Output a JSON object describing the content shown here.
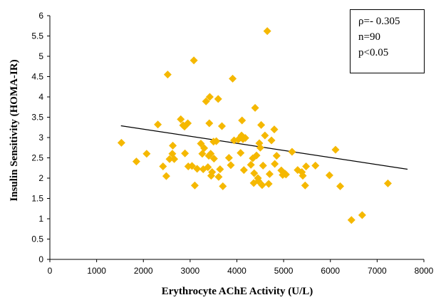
{
  "chart_data": {
    "type": "scatter",
    "title": "",
    "xlabel": "Erythrocyte AChE Activity (U/L)",
    "ylabel": "Insulin Sensitivity (HOMA-IR)",
    "xlim": [
      0,
      8000
    ],
    "ylim": [
      0,
      6
    ],
    "xticks": [
      "0",
      "1000",
      "2000",
      "3000",
      "4000",
      "5000",
      "6000",
      "7000",
      "8000"
    ],
    "yticks": [
      "0",
      "0.5",
      "1",
      "1.5",
      "2",
      "2.5",
      "3",
      "3.5",
      "4",
      "4.5",
      "5",
      "5.5",
      "6"
    ],
    "grid": false,
    "marker_color": "#F5B800",
    "trendline": {
      "x": [
        1520,
        7650
      ],
      "y": [
        3.29,
        2.22
      ],
      "color": "#000000"
    },
    "annotation": [
      "ρ=- 0.305",
      "n=90",
      "p<0.05"
    ],
    "annotation_position": "top-right",
    "points": [
      [
        1530,
        2.87
      ],
      [
        1850,
        2.41
      ],
      [
        2070,
        2.6
      ],
      [
        2310,
        3.32
      ],
      [
        2420,
        2.29
      ],
      [
        2490,
        2.05
      ],
      [
        2520,
        4.55
      ],
      [
        2560,
        2.47
      ],
      [
        2620,
        2.6
      ],
      [
        2630,
        2.8
      ],
      [
        2660,
        2.47
      ],
      [
        2800,
        3.45
      ],
      [
        2850,
        3.3
      ],
      [
        2880,
        3.27
      ],
      [
        2890,
        2.61
      ],
      [
        2950,
        3.35
      ],
      [
        2960,
        2.29
      ],
      [
        3040,
        2.3
      ],
      [
        3080,
        4.9
      ],
      [
        3100,
        1.82
      ],
      [
        3150,
        2.23
      ],
      [
        3230,
        2.85
      ],
      [
        3260,
        2.6
      ],
      [
        3280,
        2.22
      ],
      [
        3300,
        2.74
      ],
      [
        3340,
        3.89
      ],
      [
        3380,
        2.27
      ],
      [
        3400,
        2.55
      ],
      [
        3410,
        3.35
      ],
      [
        3420,
        4.0
      ],
      [
        3440,
        2.6
      ],
      [
        3450,
        2.06
      ],
      [
        3470,
        2.15
      ],
      [
        3500,
        2.9
      ],
      [
        3510,
        2.48
      ],
      [
        3560,
        2.91
      ],
      [
        3600,
        3.95
      ],
      [
        3610,
        2.03
      ],
      [
        3640,
        2.22
      ],
      [
        3680,
        3.28
      ],
      [
        3700,
        1.8
      ],
      [
        3830,
        2.5
      ],
      [
        3870,
        2.32
      ],
      [
        3910,
        4.45
      ],
      [
        3940,
        2.93
      ],
      [
        4030,
        2.95
      ],
      [
        4080,
        2.62
      ],
      [
        4100,
        3.05
      ],
      [
        4110,
        3.42
      ],
      [
        4130,
        2.96
      ],
      [
        4150,
        2.2
      ],
      [
        4180,
        2.99
      ],
      [
        4300,
        2.33
      ],
      [
        4340,
        2.49
      ],
      [
        4360,
        1.88
      ],
      [
        4370,
        2.12
      ],
      [
        4390,
        3.73
      ],
      [
        4420,
        2.56
      ],
      [
        4450,
        2.0
      ],
      [
        4460,
        1.93
      ],
      [
        4480,
        2.86
      ],
      [
        4500,
        2.75
      ],
      [
        4520,
        3.31
      ],
      [
        4540,
        1.83
      ],
      [
        4560,
        2.31
      ],
      [
        4600,
        3.05
      ],
      [
        4650,
        5.62
      ],
      [
        4680,
        1.86
      ],
      [
        4700,
        2.1
      ],
      [
        4740,
        2.93
      ],
      [
        4800,
        3.2
      ],
      [
        4810,
        2.35
      ],
      [
        4850,
        2.55
      ],
      [
        4950,
        2.19
      ],
      [
        4980,
        2.08
      ],
      [
        5030,
        2.11
      ],
      [
        5050,
        2.09
      ],
      [
        5180,
        2.65
      ],
      [
        5300,
        2.2
      ],
      [
        5390,
        2.15
      ],
      [
        5410,
        2.06
      ],
      [
        5460,
        1.82
      ],
      [
        5480,
        2.29
      ],
      [
        5680,
        2.31
      ],
      [
        5980,
        2.07
      ],
      [
        6110,
        2.7
      ],
      [
        6210,
        1.8
      ],
      [
        6450,
        0.97
      ],
      [
        6680,
        1.09
      ],
      [
        7230,
        1.87
      ]
    ]
  }
}
